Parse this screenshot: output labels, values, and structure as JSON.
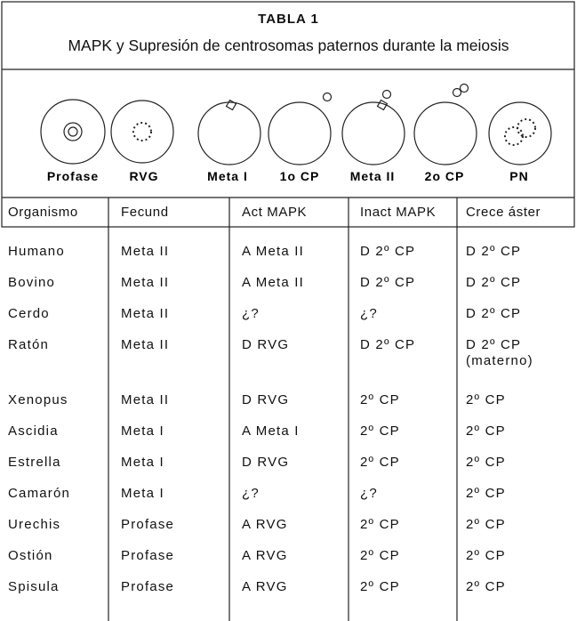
{
  "header": {
    "title": "TABLA 1",
    "subtitle": "MAPK y Supresión de centrosomas paternos durante la meiosis"
  },
  "stages": [
    "Profase",
    "RVG",
    "Meta I",
    "1o CP",
    "Meta II",
    "2o CP",
    "PN"
  ],
  "table": {
    "columns": [
      "Organismo",
      "Fecund",
      "Act MAPK",
      "Inact MAPK",
      "Crece áster"
    ],
    "rows": [
      [
        "Humano",
        "Meta II",
        "A Meta II",
        "D 2º CP",
        "D 2º CP"
      ],
      [
        "Bovino",
        "Meta II",
        "A Meta II",
        "D 2º CP",
        "D 2º CP"
      ],
      [
        "Cerdo",
        "Meta II",
        "¿?",
        "¿?",
        "D 2º CP"
      ],
      [
        "Ratón",
        "Meta II",
        "D RVG",
        "D 2º CP",
        "D 2º CP\n(materno)"
      ],
      [
        "Xenopus",
        "Meta II",
        "D RVG",
        "2º CP",
        "2º CP"
      ],
      [
        "Ascidia",
        "Meta I",
        "A Meta I",
        "2º CP",
        "2º CP"
      ],
      [
        "Estrella",
        "Meta I",
        "D RVG",
        "2º CP",
        "2º CP"
      ],
      [
        "Camarón",
        "Meta I",
        "¿?",
        "¿?",
        "2º CP"
      ],
      [
        "Urechis",
        "Profase",
        "A RVG",
        "2º CP",
        "2º CP"
      ],
      [
        "Ostión",
        "Profase",
        "A RVG",
        "2º CP",
        "2º CP"
      ],
      [
        "Spisula",
        "Profase",
        "A RVG",
        "2º CP",
        "2º CP"
      ]
    ]
  }
}
